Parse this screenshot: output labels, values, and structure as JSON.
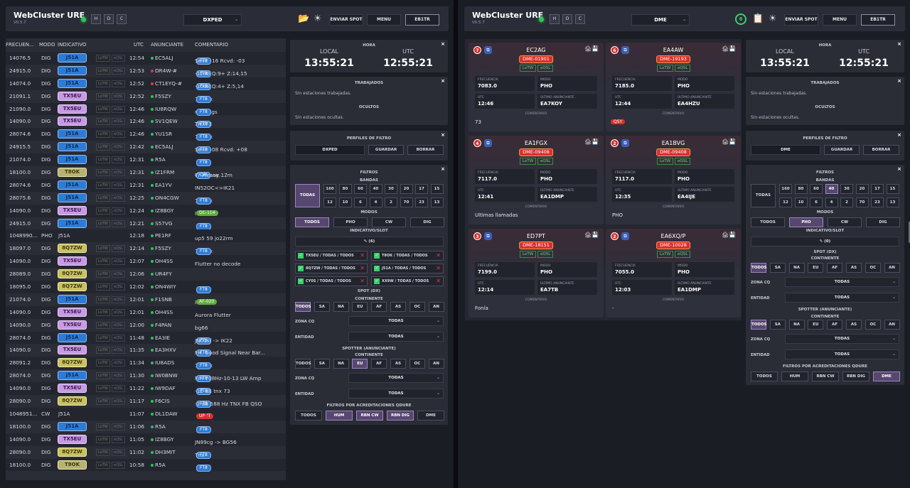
{
  "left": {
    "app_title": "WebCluster URE",
    "version": "V0.5.7",
    "filter_select": "DXPED",
    "hdr_buttons": [
      "H",
      "D",
      "C"
    ],
    "send_spot": "ENVIAR SPOT",
    "menu": "MENU",
    "user": "EB1TR",
    "cols": [
      "FRECUEN...",
      "MODO",
      "INDICATIVO",
      "UTC",
      "ANUNCIANTE",
      "COMENTARIO"
    ],
    "rows": [
      {
        "f": "14076.5",
        "m": "DIG",
        "c": "J51A",
        "cc": "j",
        "u": "12:54",
        "s": "EC5ALJ",
        "sd": "g",
        "cm": "Sent: -16 Rcvd: -03",
        "p": [
          "FT8"
        ]
      },
      {
        "f": "24915.0",
        "m": "DIG",
        "c": "J51A",
        "cc": "j",
        "u": "12:53",
        "s": "DR4W-#",
        "sd": "r",
        "cm": "-12dB Q:9+ Z:14,15",
        "p": [
          "FT8"
        ]
      },
      {
        "f": "14074.0",
        "m": "DIG",
        "c": "J51A",
        "cc": "j",
        "u": "12:52",
        "s": "CT1EYQ-#",
        "sd": "r",
        "cm": "-10dB Q:4+ Z:5,14",
        "p": [
          "FT8"
        ]
      },
      {
        "f": "21091.1",
        "m": "DIG",
        "c": "TX5EU",
        "cc": "t",
        "u": "12:52",
        "s": "F5SZY",
        "sd": "g",
        "cm": "73 Tnx",
        "pa": [
          "FT8"
        ]
      },
      {
        "f": "21090.0",
        "m": "DIG",
        "c": "TX5EU",
        "cc": "t",
        "u": "12:46",
        "s": "IU8RQW",
        "sd": "g",
        "cm": "nice sigs",
        "pa": [
          "FT8"
        ]
      },
      {
        "f": "14090.0",
        "m": "DIG",
        "c": "TX5EU",
        "cc": "t",
        "u": "12:46",
        "s": "SV1QEW",
        "sd": "g",
        "cm": "14090",
        "pm": [
          "FT8"
        ],
        "cm2": "TNX73"
      },
      {
        "f": "28074.6",
        "m": "DIG",
        "c": "J51A",
        "cc": "j",
        "u": "12:46",
        "s": "YU1SR",
        "sd": "g",
        "cm": "73 Tnx",
        "pa": [
          "FT8"
        ]
      },
      {
        "f": "24915.5",
        "m": "DIG",
        "c": "J51A",
        "cc": "j",
        "u": "12:42",
        "s": "EC5ALJ",
        "sd": "g",
        "cm": "Sent: -08 Rcvd: +08",
        "p": [
          "FT8"
        ]
      },
      {
        "f": "21074.0",
        "m": "DIG",
        "c": "J51A",
        "cc": "j",
        "u": "12:31",
        "s": "R5A",
        "sd": "g",
        "cm": "",
        "p": [
          "FT8"
        ]
      },
      {
        "f": "18100.0",
        "m": "DIG",
        "c": "T8OK",
        "cc": "k",
        "u": "12:31",
        "s": "IZ1FRM",
        "sd": "g",
        "cm": "Guys any 17m",
        "pm": [
          "CW"
        ],
        "cm2": "?? Please. ..."
      },
      {
        "f": "28074.6",
        "m": "DIG",
        "c": "J51A",
        "cc": "j",
        "u": "12:31",
        "s": "EA1YV",
        "sd": "g",
        "cm": "IN52OC<>IK21"
      },
      {
        "f": "28075.6",
        "m": "DIG",
        "c": "J51A",
        "cc": "j",
        "u": "12:25",
        "s": "ON4CGW",
        "sd": "g",
        "cm": "73 Tnx",
        "pa": [
          "FT8"
        ]
      },
      {
        "f": "14090.0",
        "m": "DIG",
        "c": "TX5EU",
        "cc": "t",
        "u": "12:24",
        "s": "IZ8BGY",
        "sd": "g",
        "cm": "IOTA",
        "pga": [
          "OC-114"
        ]
      },
      {
        "f": "24915.0",
        "m": "DIG",
        "c": "J51A",
        "cc": "j",
        "u": "12:21",
        "s": "S57VG",
        "sd": "g",
        "cm": "",
        "p": [
          "FT8"
        ]
      },
      {
        "f": "1048990...",
        "m": "PHO",
        "c": "J51A",
        "cc": "n",
        "u": "12:18",
        "s": "PE1RF",
        "sd": "g",
        "cm": "up5 59 jo22rm"
      },
      {
        "f": "18097.0",
        "m": "DIG",
        "c": "8Q7ZW",
        "cc": "8",
        "u": "12:14",
        "s": "F5SZY",
        "sd": "g",
        "cm": "73 Tnx",
        "pa": [
          "FT8"
        ]
      },
      {
        "f": "14090.0",
        "m": "DIG",
        "c": "TX5EU",
        "cc": "t",
        "u": "12:07",
        "s": "OH4SS",
        "sd": "g",
        "cm": "Flutter no decode"
      },
      {
        "f": "28089.0",
        "m": "DIG",
        "c": "8Q7ZW",
        "cc": "8",
        "u": "12:06",
        "s": "UR4FY",
        "sd": "g",
        "cm": ""
      },
      {
        "f": "18095.0",
        "m": "DIG",
        "c": "8Q7ZW",
        "cc": "8",
        "u": "12:02",
        "s": "ON4WIY",
        "sd": "g",
        "cm": "",
        "p": [
          "FT8"
        ]
      },
      {
        "f": "21074.0",
        "m": "DIG",
        "c": "J51A",
        "cc": "j",
        "u": "12:01",
        "s": "F1SNB",
        "sd": "g",
        "cm": "IOTA",
        "pga": [
          "AF-020"
        ]
      },
      {
        "f": "14090.0",
        "m": "DIG",
        "c": "TX5EU",
        "cc": "t",
        "u": "12:01",
        "s": "OH4SS",
        "sd": "g",
        "cm": "Aurora Flutter"
      },
      {
        "f": "14090.0",
        "m": "DIG",
        "c": "TX5EU",
        "cc": "t",
        "u": "12:00",
        "s": "F4PAN",
        "sd": "g",
        "cm": "bg66"
      },
      {
        "f": "28074.0",
        "m": "DIG",
        "c": "J51A",
        "cc": "j",
        "u": "11:48",
        "s": "EA3IE",
        "sd": "g",
        "cm": "JN01sf -> IK22",
        "p": [
          "FT8"
        ]
      },
      {
        "f": "14090.0",
        "m": "DIG",
        "c": "TX5EU",
        "cc": "t",
        "u": "11:35",
        "s": "EA3HXV",
        "sd": "g",
        "cm": "FH. Good Signal Near Bar...",
        "p": [
          "FT8"
        ]
      },
      {
        "f": "28091.2",
        "m": "DIG",
        "c": "8Q7ZW",
        "cc": "8",
        "u": "11:34",
        "s": "IU8ADS",
        "sd": "g",
        "cm": "73 Tnx",
        "pa": [
          "FT8"
        ]
      },
      {
        "f": "28074.0",
        "m": "DIG",
        "c": "J51A",
        "cc": "j",
        "u": "11:30",
        "s": "IW0BNW",
        "sd": "g",
        "cm": "F/H 708Hz-10-13 LW Amp",
        "p": [
          "FT8"
        ]
      },
      {
        "f": "14090.0",
        "m": "DIG",
        "c": "TX5EU",
        "cc": "t",
        "u": "11:22",
        "s": "IW9DAF",
        "sd": "g",
        "cm": "-12 dB tnx 73",
        "p": [
          "FT8"
        ]
      },
      {
        "f": "28090.0",
        "m": "DIG",
        "c": "8Q7ZW",
        "cc": "8",
        "u": "11:17",
        "s": "F6CIS",
        "sd": "g",
        "cm": "-2 dB 588 Hz TNX FB QSO",
        "p": [
          "FT8"
        ]
      },
      {
        "f": "1048951...",
        "m": "CW",
        "c": "J51A",
        "cc": "n",
        "u": "11:07",
        "s": "DL1DAW",
        "sd": "g",
        "cm": "",
        "pr": [
          "SPLIT",
          "UP"
        ]
      },
      {
        "f": "18100.0",
        "m": "DIG",
        "c": "J51A",
        "cc": "j",
        "u": "11:06",
        "s": "R5A",
        "sd": "g",
        "cm": "",
        "p": [
          "FT8"
        ]
      },
      {
        "f": "14090.0",
        "m": "DIG",
        "c": "TX5EU",
        "cc": "t",
        "u": "11:05",
        "s": "IZ8BGY",
        "sd": "g",
        "cm": "JN89cg -> BG56"
      },
      {
        "f": "28090.0",
        "m": "DIG",
        "c": "8Q7ZW",
        "cc": "8",
        "u": "11:02",
        "s": "DH3MIT",
        "sd": "g",
        "cm": "Tnx",
        "p": [
          "FT8"
        ]
      },
      {
        "f": "18100.0",
        "m": "DIG",
        "c": "T8OK",
        "cc": "k",
        "u": "10:58",
        "s": "R5A",
        "sd": "g",
        "cm": "",
        "p": [
          "FT8"
        ]
      }
    ],
    "lotw": "LoTW",
    "eqsl": "eQSL",
    "clock": {
      "title": "HORA",
      "local_lbl": "LOCAL",
      "local": "13:55:21",
      "utc_lbl": "UTC",
      "utc": "12:55:21"
    },
    "worked": {
      "title": "TRABAJADOS",
      "text": "Sin estaciones trabajadas.",
      "hidden_title": "OCULTOS",
      "hidden_text": "Sin estaciones ocultas."
    },
    "profiles": {
      "title": "PERFILES DE FILTRO",
      "value": "DXPED",
      "save": "GUARDAR",
      "delete": "BORRAR"
    },
    "filters": {
      "title": "FILTROS",
      "bands_lbl": "BANDAS",
      "all": "TODAS",
      "bands1": [
        "160",
        "80",
        "60",
        "40",
        "30",
        "20",
        "17",
        "15"
      ],
      "bands2": [
        "12",
        "10",
        "6",
        "4",
        "2",
        "70",
        "23",
        "13"
      ],
      "modes_lbl": "MODOS",
      "modes": [
        "TODOS",
        "PHO",
        "CW",
        "DIG"
      ],
      "call_lbl": "INDICATIVO/SLOT",
      "call_count": "✎ (6)",
      "slots": [
        "TX5EU / TODAS / TODOS",
        "T8OK / TODAS / TODOS",
        "8Q7ZW / TODAS / TODOS",
        "J51A / TODAS / TODOS",
        "CY0S / TODAS / TODOS",
        "XX9W / TODAS / TODOS"
      ],
      "spot_lbl": "SPOT (DX)",
      "cont_lbl": "CONTINENTE",
      "conts": [
        "TODOS",
        "SA",
        "NA",
        "EU",
        "AF",
        "AS",
        "OC",
        "AN"
      ],
      "zone_lbl": "ZONA CQ",
      "zone": "TODAS",
      "entity_lbl": "ENTIDAD",
      "entity": "TODAS",
      "spotter_lbl": "SPOTTER (ANUNCIANTE)",
      "sp_cont_lbl": "CONTINENTE",
      "sp_zone": "TODAS",
      "sp_entity": "TODAS",
      "acc_lbl": "FILTROS POR ACREDITACIONES QDURE",
      "acc": [
        "TODOS",
        "HUM",
        "RBN CW",
        "RBN DIG",
        "DME"
      ]
    }
  },
  "right": {
    "app_title": "WebCluster URE",
    "version": "V0.5.7",
    "filter_select": "DME",
    "badge": "6",
    "hdr_buttons": [
      "H",
      "D",
      "C"
    ],
    "send_spot": "ENVIAR SPOT",
    "menu": "MENU",
    "user": "EB1TR",
    "cards": [
      {
        "n": "7",
        "call": "EC2AG",
        "dme": "DME-01901",
        "freq": "7083.0",
        "mode": "PHO",
        "utc": "12:46",
        "spotter": "EA7KOY",
        "comment": "73"
      },
      {
        "n": "6",
        "call": "EA4AW",
        "dme": "DME-19193",
        "freq": "7185.0",
        "mode": "PHO",
        "utc": "12:44",
        "spotter": "EA4HZU",
        "comment": "",
        "tag": "QSY"
      },
      {
        "n": "4",
        "call": "EA1FGX",
        "dme": "DME-09408",
        "freq": "7117.0",
        "mode": "PHO",
        "utc": "12:41",
        "spotter": "EA1DMP",
        "comment": "Ultimas llamadas"
      },
      {
        "n": "2",
        "call": "EA1BVG",
        "dme": "DME-09408",
        "freq": "7117.0",
        "mode": "PHO",
        "utc": "12:35",
        "spotter": "EA4IJE",
        "comment": "PHO"
      },
      {
        "n": "3",
        "call": "ED7PT",
        "dme": "DME-18151",
        "freq": "7199.0",
        "mode": "PHO",
        "utc": "12:14",
        "spotter": "EA7TB",
        "comment": "Fonía"
      },
      {
        "n": "2",
        "call": "EA6XQ/P",
        "dme": "DME-10028",
        "freq": "7055.0",
        "mode": "PHO",
        "utc": "12:03",
        "spotter": "EA1DMP",
        "comment": "-"
      }
    ],
    "card_lbl": {
      "freq": "FRECUENCIA",
      "mode": "MODO",
      "utc": "UTC",
      "spotter": "ÚLTIMO ANUNCIANTE",
      "comment": "COMENTARIO"
    },
    "lotw": "LoTW",
    "eqsl": "eQSL",
    "clock": {
      "title": "HORA",
      "local_lbl": "LOCAL",
      "local": "13:55:21",
      "utc_lbl": "UTC",
      "utc": "12:55:21"
    },
    "worked": {
      "title": "TRABAJADOS",
      "text": "Sin estaciones trabajadas.",
      "hidden_title": "OCULTOS",
      "hidden_text": "Sin estaciones ocultas."
    },
    "profiles": {
      "title": "PERFILES DE FILTRO",
      "value": "DME",
      "save": "GUARDAR",
      "delete": "BORRAR"
    },
    "filters": {
      "title": "FILTROS",
      "bands_lbl": "BANDAS",
      "all": "TODAS",
      "bands1": [
        "160",
        "80",
        "60",
        "40",
        "30",
        "20",
        "17",
        "15"
      ],
      "bands2": [
        "12",
        "10",
        "6",
        "4",
        "2",
        "70",
        "23",
        "13"
      ],
      "modes_lbl": "MODOS",
      "modes": [
        "TODOS",
        "PHO",
        "CW",
        "DIG"
      ],
      "call_lbl": "INDICATIVO/SLOT",
      "call_count": "✎ (0)",
      "spot_lbl": "SPOT (DX)",
      "cont_lbl": "CONTINENTE",
      "conts": [
        "TODOS",
        "SA",
        "NA",
        "EU",
        "AF",
        "AS",
        "OC",
        "AN"
      ],
      "zone_lbl": "ZONA CQ",
      "zone": "TODAS",
      "entity_lbl": "ENTIDAD",
      "entity": "TODAS",
      "spotter_lbl": "SPOTTER (ANUNCIANTE)",
      "sp_cont_lbl": "CONTINENTE",
      "sp_zone": "TODAS",
      "sp_entity": "TODAS",
      "acc_lbl": "FILTROS POR ACREDITACIONES QDURE",
      "acc": [
        "TODOS",
        "HUM",
        "RBN CW",
        "RBN DIG",
        "DME"
      ]
    }
  }
}
